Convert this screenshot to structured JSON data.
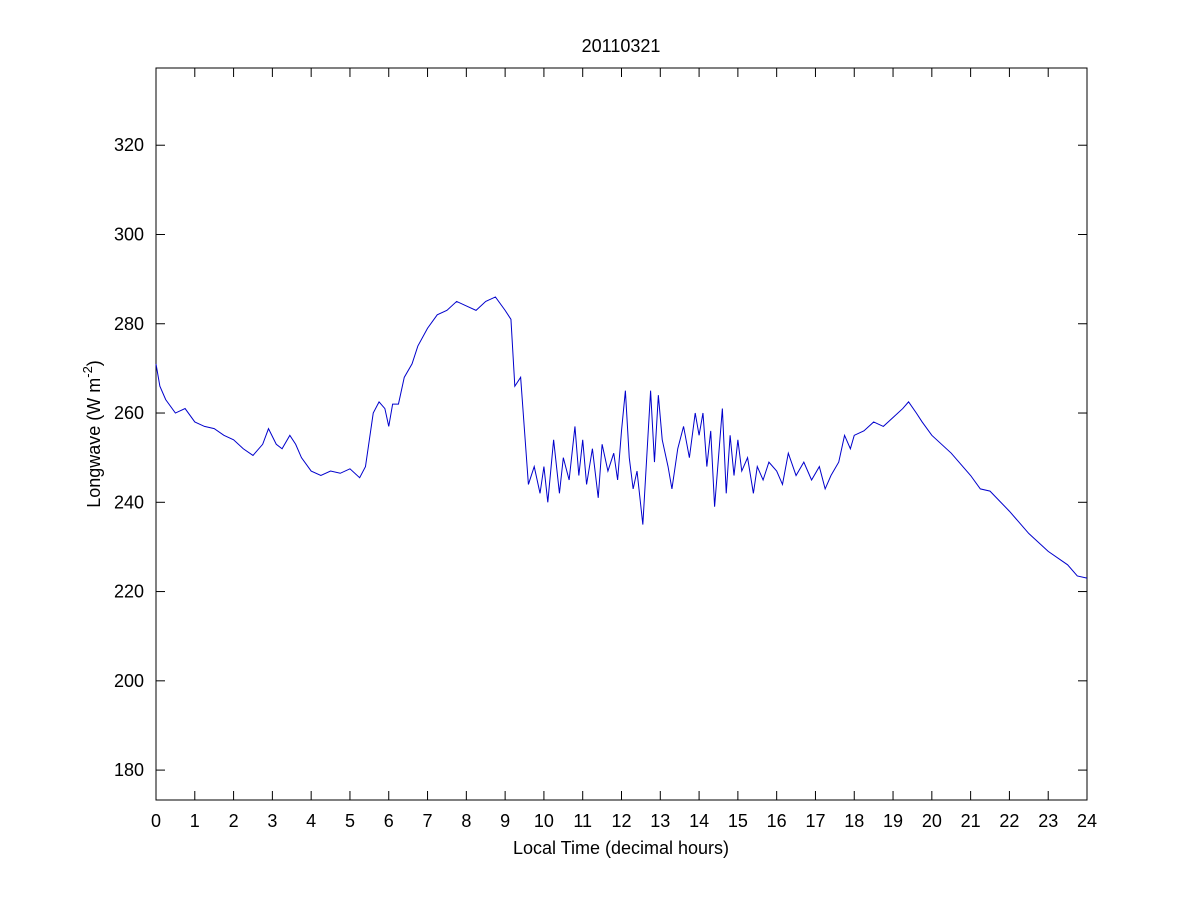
{
  "chart_data": {
    "type": "line",
    "title": "20110321",
    "x_label": "Local Time (decimal hours)",
    "y_label": [
      "Longwave (W m",
      "-2",
      ")"
    ],
    "xlim": [
      0,
      24
    ],
    "xticks": [
      0,
      1,
      2,
      3,
      4,
      5,
      6,
      7,
      8,
      9,
      10,
      11,
      12,
      13,
      14,
      15,
      16,
      17,
      18,
      19,
      20,
      21,
      22,
      23,
      24
    ],
    "ylim": [
      173.3,
      337.3
    ],
    "yticks": [
      180,
      200,
      220,
      240,
      260,
      280,
      300,
      320
    ],
    "grid": false,
    "series": [
      {
        "name": "Longwave",
        "color": "#0000cc",
        "x": [
          0,
          0.1,
          0.25,
          0.5,
          0.75,
          1,
          1.25,
          1.5,
          1.75,
          2,
          2.25,
          2.5,
          2.75,
          2.9,
          3.1,
          3.25,
          3.45,
          3.6,
          3.75,
          4,
          4.25,
          4.5,
          4.75,
          5,
          5.25,
          5.4,
          5.6,
          5.75,
          5.9,
          6.0,
          6.1,
          6.25,
          6.4,
          6.6,
          6.75,
          7,
          7.25,
          7.5,
          7.75,
          8,
          8.25,
          8.5,
          8.75,
          9,
          9.15,
          9.25,
          9.4,
          9.5,
          9.6,
          9.75,
          9.9,
          10,
          10.1,
          10.25,
          10.4,
          10.5,
          10.65,
          10.8,
          10.9,
          11.0,
          11.1,
          11.25,
          11.4,
          11.5,
          11.65,
          11.8,
          11.9,
          12.0,
          12.1,
          12.2,
          12.3,
          12.4,
          12.55,
          12.65,
          12.75,
          12.85,
          12.95,
          13.05,
          13.2,
          13.3,
          13.45,
          13.6,
          13.75,
          13.9,
          14.0,
          14.1,
          14.2,
          14.3,
          14.4,
          14.5,
          14.6,
          14.7,
          14.8,
          14.9,
          15.0,
          15.1,
          15.25,
          15.4,
          15.5,
          15.65,
          15.8,
          16.0,
          16.15,
          16.3,
          16.5,
          16.7,
          16.9,
          17.1,
          17.25,
          17.4,
          17.6,
          17.75,
          17.9,
          18.0,
          18.25,
          18.5,
          18.75,
          19,
          19.25,
          19.4,
          19.6,
          19.75,
          20,
          20.5,
          21,
          21.25,
          21.5,
          22,
          22.5,
          23,
          23.5,
          23.75,
          24
        ],
        "values": [
          271,
          266,
          263,
          260,
          261,
          258,
          257,
          256.5,
          255,
          254,
          252,
          250.5,
          253,
          256.5,
          253,
          252,
          255,
          253,
          250,
          247,
          246,
          247,
          246.5,
          247.5,
          245.5,
          248,
          260,
          262.5,
          261,
          257,
          262,
          262,
          268,
          271,
          275,
          279,
          282,
          283,
          285,
          284,
          283,
          285,
          286,
          283,
          281,
          266,
          268,
          256,
          244,
          248,
          242,
          248,
          240,
          254,
          242,
          250,
          245,
          257,
          246,
          254,
          244,
          252,
          241,
          253,
          247,
          251,
          245,
          256,
          265,
          250,
          243,
          247,
          235,
          250,
          265,
          249,
          264,
          254,
          248,
          243,
          252,
          257,
          250,
          260,
          255,
          260,
          248,
          256,
          239,
          250,
          261,
          242,
          255,
          246,
          254,
          247,
          250,
          242,
          248,
          245,
          249,
          247,
          244,
          251,
          246,
          249,
          245,
          248,
          243,
          246,
          249,
          255,
          252,
          255,
          256,
          258,
          257,
          259,
          261,
          262.5,
          260,
          258,
          255,
          251,
          246,
          243,
          242.5,
          238,
          233,
          229,
          226,
          223.5,
          223
        ]
      }
    ]
  }
}
